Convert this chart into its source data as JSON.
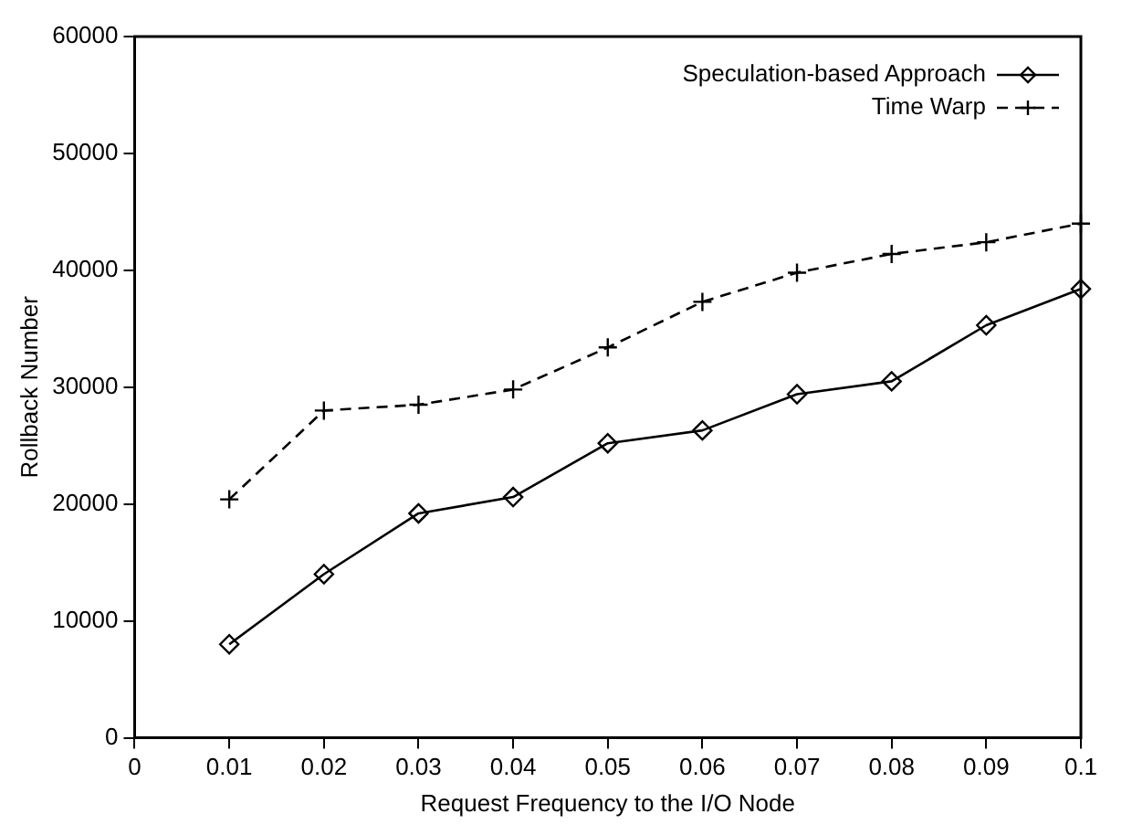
{
  "chart_data": {
    "type": "line",
    "xlabel": "Request Frequency to the I/O Node",
    "ylabel": "Rollback Number",
    "x": [
      0.01,
      0.02,
      0.03,
      0.04,
      0.05,
      0.06,
      0.07,
      0.08,
      0.09,
      0.1
    ],
    "series": [
      {
        "name": "Speculation-based Approach",
        "color": "#000000",
        "marker": "diamond",
        "line_style": "solid",
        "values": [
          8000,
          14000,
          19200,
          20600,
          25200,
          26300,
          29400,
          30500,
          35300,
          38400
        ]
      },
      {
        "name": "Time Warp",
        "color": "#000000",
        "marker": "cross",
        "line_style": "dashed",
        "values": [
          20400,
          28000,
          28500,
          29800,
          33400,
          37300,
          39800,
          41400,
          42400,
          44000
        ]
      }
    ],
    "xlim": [
      0,
      0.1
    ],
    "xticks": [
      0,
      0.01,
      0.02,
      0.03,
      0.04,
      0.05,
      0.06,
      0.07,
      0.08,
      0.09,
      0.1
    ],
    "ylim": [
      0,
      60000
    ],
    "yticks": [
      0,
      10000,
      20000,
      30000,
      40000,
      50000,
      60000
    ],
    "grid": false,
    "legend": "top right"
  }
}
